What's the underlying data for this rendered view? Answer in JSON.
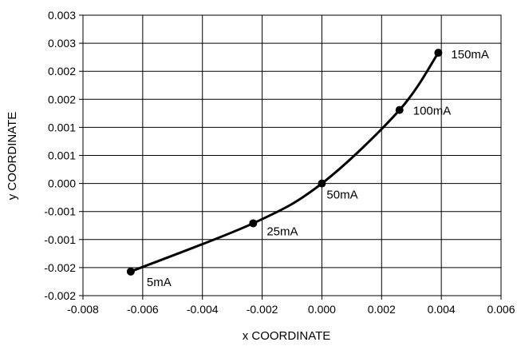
{
  "chart_data": {
    "type": "scatter",
    "title": "",
    "xlabel": "x COORDINATE",
    "ylabel": "y COORDINATE",
    "xlim": [
      -0.008,
      0.006
    ],
    "ylim": [
      -0.002,
      0.003
    ],
    "x_ticks": [
      -0.008,
      -0.006,
      -0.004,
      -0.002,
      0.0,
      0.002,
      0.004,
      0.006
    ],
    "x_tick_labels": [
      "-0.008",
      "-0.006",
      "-0.004",
      "-0.002",
      "0.000",
      "0.002",
      "0.004",
      "0.006"
    ],
    "y_ticks": [
      -0.002,
      -0.0015,
      -0.001,
      -0.0005,
      0.0,
      0.0005,
      0.001,
      0.0015,
      0.002,
      0.0025,
      0.003
    ],
    "y_tick_labels": [
      "-0.002",
      "-0.002",
      "-0.001",
      "-0.001",
      "0.000",
      "0.001",
      "0.001",
      "0.002",
      "0.002",
      "0.003",
      "0.003"
    ],
    "grid": true,
    "legend": "none",
    "line_color": "#000000",
    "points": [
      {
        "x": -0.0064,
        "y": -0.00157,
        "label": "5mA"
      },
      {
        "x": -0.0023,
        "y": -0.00071,
        "label": "25mA"
      },
      {
        "x": 0.0,
        "y": 0.0,
        "label": "50mA"
      },
      {
        "x": 0.0026,
        "y": 0.00131,
        "label": "100mA"
      },
      {
        "x": 0.0039,
        "y": 0.00233,
        "label": "150mA"
      }
    ]
  }
}
